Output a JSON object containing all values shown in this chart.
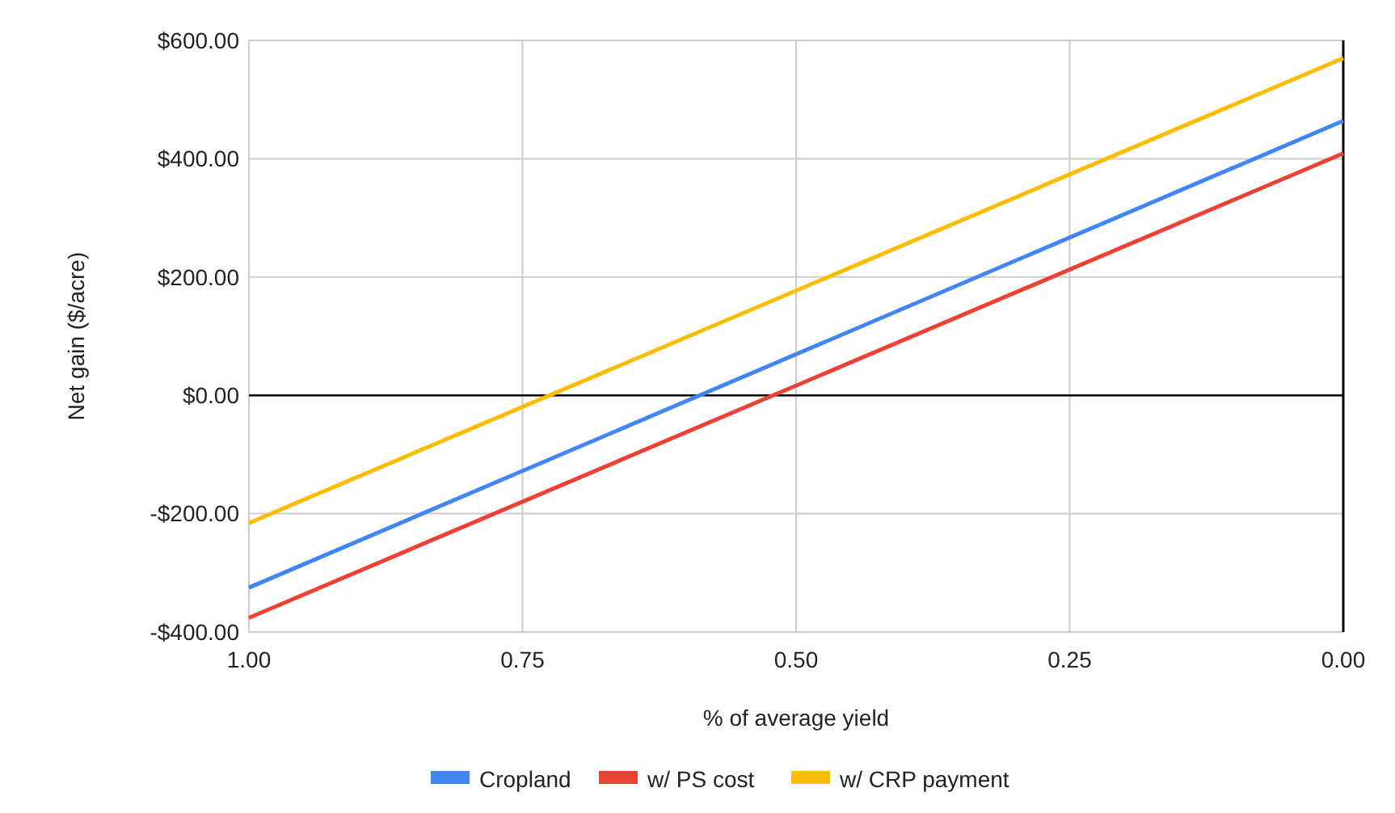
{
  "chart_data": {
    "type": "line",
    "xlabel": "% of average yield",
    "ylabel": "Net gain ($/acre)",
    "x": [
      1,
      0
    ],
    "series": [
      {
        "name": "Cropland",
        "color": "#4285f4",
        "values": [
          -325,
          464
        ]
      },
      {
        "name": "w/ PS cost",
        "color": "#ea4335",
        "values": [
          -376,
          409
        ]
      },
      {
        "name": "w/ CRP payment",
        "color": "#fbbc04",
        "values": [
          -216,
          570
        ]
      }
    ],
    "xlim": [
      1,
      0
    ],
    "xticks": [
      {
        "value": 1,
        "label": "1.00"
      },
      {
        "value": 0.75,
        "label": "0.75"
      },
      {
        "value": 0.5,
        "label": "0.50"
      },
      {
        "value": 0.25,
        "label": "0.25"
      },
      {
        "value": 0,
        "label": "0.00"
      }
    ],
    "ylim": [
      -400,
      600
    ],
    "yticks": [
      {
        "value": -400,
        "label": "-$400.00"
      },
      {
        "value": -200,
        "label": "-$200.00"
      },
      {
        "value": 0,
        "label": "$0.00"
      },
      {
        "value": 200,
        "label": "$200.00"
      },
      {
        "value": 400,
        "label": "$400.00"
      },
      {
        "value": 600,
        "label": "$600.00"
      }
    ],
    "grid": true,
    "legend": "bottom",
    "marker": "none",
    "line_style": "solid"
  }
}
